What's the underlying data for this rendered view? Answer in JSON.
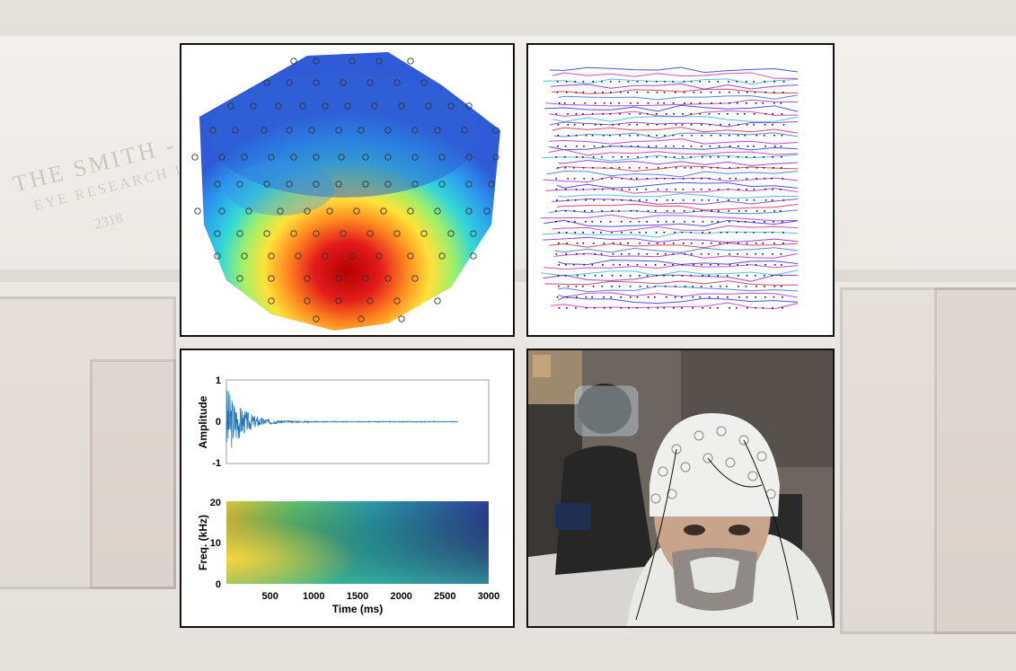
{
  "background": {
    "sign_text": "THE SMITH - KETTLEW",
    "sign_subtext": "EYE RESEARCH INSTI",
    "sign_number": "2318"
  },
  "colors": {
    "panel_border": "#111111",
    "topo_low": "#2f5bd8",
    "topo_high": "#c81010",
    "waveform": "#1f77b4"
  },
  "panels": {
    "topomap": {
      "icon": "eeg-topography-heatmap"
    },
    "eye_tracking": {
      "icon": "gaze-trace-plot"
    },
    "photo": {
      "icon": "eeg-cap-participant-photo"
    }
  },
  "chart_data": [
    {
      "type": "line",
      "ylabel": "Amplitude",
      "yticks": [
        "1",
        "0",
        "-1"
      ],
      "ylim": [
        -1,
        1
      ],
      "xlim": [
        0,
        3000
      ],
      "description_of_signal": "decaying burst near 0 ms, flat after ~700 ms, ends ~2650 ms"
    },
    {
      "type": "heatmap",
      "ylabel": "Freq. (kHz)",
      "xlabel": "Time (ms)",
      "yticks": [
        "20",
        "10",
        "0"
      ],
      "xticks": [
        "500",
        "1000",
        "1500",
        "2000",
        "2500",
        "3000"
      ],
      "ylim": [
        0,
        20
      ],
      "xlim": [
        0,
        3000
      ]
    }
  ]
}
